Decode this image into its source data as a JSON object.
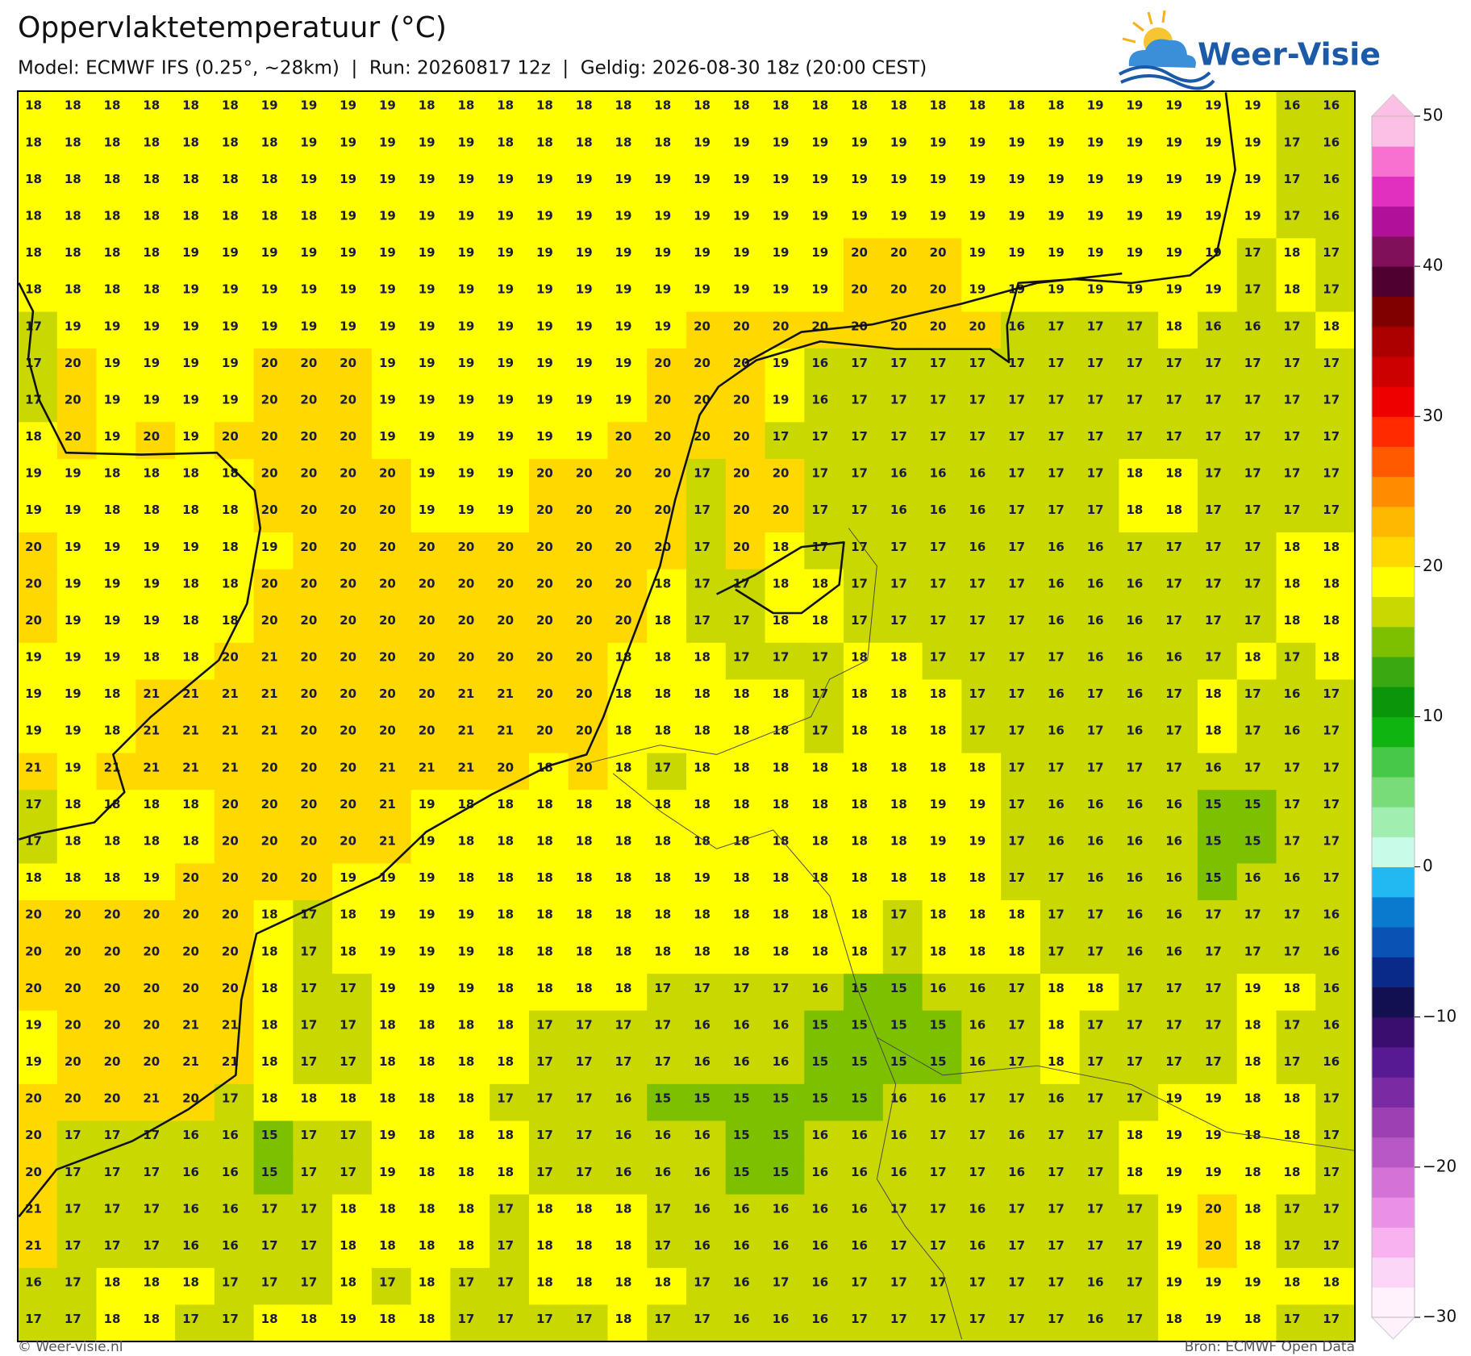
{
  "header": {
    "title": "Oppervlaktetemperatuur (°C)",
    "subtitle": "Model: ECMWF IFS (0.25°, ~28km)  |  Run: 20260817 12z  |  Geldig: 2026-08-30 18z (20:00 CEST)"
  },
  "logo": "Weer-Visie",
  "map": {
    "type": "grid",
    "values": [
      [
        18,
        18,
        18,
        18,
        18,
        18,
        19,
        19,
        19,
        19,
        18,
        18,
        18,
        18,
        18,
        18,
        18,
        18,
        18,
        18,
        18,
        18,
        18,
        18,
        18,
        18,
        18,
        19,
        19,
        19,
        19,
        19,
        16,
        16
      ],
      [
        18,
        18,
        18,
        18,
        18,
        18,
        18,
        19,
        19,
        19,
        19,
        19,
        18,
        18,
        18,
        18,
        18,
        19,
        19,
        19,
        19,
        19,
        19,
        19,
        19,
        19,
        19,
        19,
        19,
        19,
        19,
        19,
        17,
        16
      ],
      [
        18,
        18,
        18,
        18,
        18,
        18,
        18,
        19,
        19,
        19,
        19,
        19,
        19,
        19,
        19,
        19,
        19,
        19,
        19,
        19,
        19,
        19,
        19,
        19,
        19,
        19,
        19,
        19,
        19,
        19,
        19,
        19,
        17,
        16
      ],
      [
        18,
        18,
        18,
        18,
        18,
        18,
        18,
        18,
        19,
        19,
        19,
        19,
        19,
        19,
        19,
        19,
        19,
        19,
        19,
        19,
        19,
        19,
        19,
        19,
        19,
        19,
        19,
        19,
        19,
        19,
        19,
        19,
        17,
        16
      ],
      [
        18,
        18,
        18,
        18,
        19,
        19,
        19,
        19,
        19,
        19,
        19,
        19,
        19,
        19,
        19,
        19,
        19,
        19,
        19,
        19,
        19,
        20,
        20,
        20,
        19,
        19,
        19,
        19,
        19,
        19,
        19,
        17,
        18,
        17
      ],
      [
        18,
        18,
        18,
        18,
        19,
        19,
        19,
        19,
        19,
        19,
        19,
        19,
        19,
        19,
        19,
        19,
        19,
        19,
        19,
        19,
        19,
        20,
        20,
        20,
        19,
        19,
        19,
        19,
        19,
        19,
        19,
        17,
        18,
        17
      ],
      [
        17,
        19,
        19,
        19,
        19,
        19,
        19,
        19,
        19,
        19,
        19,
        19,
        19,
        19,
        19,
        19,
        19,
        20,
        20,
        20,
        20,
        20,
        20,
        20,
        20,
        16,
        17,
        17,
        17,
        18,
        16,
        16,
        17,
        18
      ],
      [
        17,
        20,
        19,
        19,
        19,
        19,
        20,
        20,
        20,
        19,
        19,
        19,
        19,
        19,
        19,
        19,
        20,
        20,
        20,
        19,
        16,
        17,
        17,
        17,
        17,
        17,
        17,
        17,
        17,
        17,
        17,
        17,
        17,
        17
      ],
      [
        17,
        20,
        19,
        19,
        19,
        19,
        20,
        20,
        20,
        19,
        19,
        19,
        19,
        19,
        19,
        19,
        20,
        20,
        20,
        19,
        16,
        17,
        17,
        17,
        17,
        17,
        17,
        17,
        17,
        17,
        17,
        17,
        17,
        17
      ],
      [
        18,
        20,
        19,
        20,
        19,
        20,
        20,
        20,
        20,
        19,
        19,
        19,
        19,
        19,
        19,
        20,
        20,
        20,
        20,
        17,
        17,
        17,
        17,
        17,
        17,
        17,
        17,
        17,
        17,
        17,
        17,
        17,
        17,
        17
      ],
      [
        19,
        19,
        18,
        18,
        18,
        18,
        20,
        20,
        20,
        20,
        19,
        19,
        19,
        20,
        20,
        20,
        20,
        17,
        20,
        20,
        17,
        17,
        16,
        16,
        16,
        17,
        17,
        17,
        18,
        18,
        17,
        17,
        17,
        17
      ],
      [
        19,
        19,
        18,
        18,
        18,
        18,
        20,
        20,
        20,
        20,
        19,
        19,
        19,
        20,
        20,
        20,
        20,
        17,
        20,
        20,
        17,
        17,
        16,
        16,
        16,
        17,
        17,
        17,
        18,
        18,
        17,
        17,
        17,
        17
      ],
      [
        20,
        19,
        19,
        19,
        19,
        18,
        19,
        20,
        20,
        20,
        20,
        20,
        20,
        20,
        20,
        20,
        20,
        17,
        20,
        18,
        17,
        17,
        17,
        17,
        16,
        17,
        16,
        16,
        17,
        17,
        17,
        17,
        18,
        18
      ],
      [
        20,
        19,
        19,
        19,
        18,
        18,
        20,
        20,
        20,
        20,
        20,
        20,
        20,
        20,
        20,
        20,
        18,
        17,
        17,
        18,
        18,
        17,
        17,
        17,
        17,
        17,
        16,
        16,
        16,
        17,
        17,
        17,
        18,
        18
      ],
      [
        20,
        19,
        19,
        19,
        18,
        18,
        20,
        20,
        20,
        20,
        20,
        20,
        20,
        20,
        20,
        20,
        18,
        17,
        17,
        18,
        18,
        17,
        17,
        17,
        17,
        17,
        16,
        16,
        16,
        17,
        17,
        17,
        18,
        18
      ],
      [
        19,
        19,
        19,
        18,
        18,
        20,
        21,
        20,
        20,
        20,
        20,
        20,
        20,
        20,
        20,
        18,
        18,
        18,
        17,
        17,
        17,
        18,
        18,
        17,
        17,
        17,
        17,
        16,
        16,
        16,
        17,
        18,
        17,
        18
      ],
      [
        19,
        19,
        18,
        21,
        21,
        21,
        21,
        20,
        20,
        20,
        20,
        21,
        21,
        20,
        20,
        18,
        18,
        18,
        18,
        18,
        17,
        18,
        18,
        18,
        17,
        17,
        16,
        17,
        16,
        17,
        18,
        17,
        16,
        17
      ],
      [
        19,
        19,
        18,
        21,
        21,
        21,
        21,
        20,
        20,
        20,
        20,
        21,
        21,
        20,
        20,
        18,
        18,
        18,
        18,
        18,
        17,
        18,
        18,
        18,
        17,
        17,
        16,
        17,
        16,
        17,
        18,
        17,
        16,
        17
      ],
      [
        21,
        19,
        21,
        21,
        21,
        21,
        20,
        20,
        20,
        21,
        21,
        21,
        20,
        18,
        20,
        18,
        17,
        18,
        18,
        18,
        18,
        18,
        18,
        18,
        18,
        17,
        17,
        17,
        17,
        17,
        16,
        17,
        17,
        17
      ],
      [
        17,
        18,
        18,
        18,
        18,
        20,
        20,
        20,
        20,
        21,
        19,
        18,
        18,
        18,
        18,
        18,
        18,
        18,
        18,
        18,
        18,
        18,
        18,
        19,
        19,
        17,
        16,
        16,
        16,
        16,
        15,
        15,
        17,
        17
      ],
      [
        17,
        18,
        18,
        18,
        18,
        20,
        20,
        20,
        20,
        21,
        19,
        18,
        18,
        18,
        18,
        18,
        18,
        18,
        18,
        18,
        18,
        18,
        18,
        19,
        19,
        17,
        16,
        16,
        16,
        16,
        15,
        15,
        17,
        17
      ],
      [
        18,
        18,
        18,
        19,
        20,
        20,
        20,
        20,
        19,
        19,
        19,
        18,
        18,
        18,
        18,
        18,
        18,
        19,
        18,
        18,
        18,
        18,
        18,
        18,
        18,
        17,
        17,
        16,
        16,
        16,
        15,
        16,
        16,
        17
      ],
      [
        20,
        20,
        20,
        20,
        20,
        20,
        18,
        17,
        18,
        19,
        19,
        19,
        18,
        18,
        18,
        18,
        18,
        18,
        18,
        18,
        18,
        18,
        17,
        18,
        18,
        18,
        17,
        17,
        16,
        16,
        17,
        17,
        17,
        16
      ],
      [
        20,
        20,
        20,
        20,
        20,
        20,
        18,
        17,
        18,
        19,
        19,
        19,
        18,
        18,
        18,
        18,
        18,
        18,
        18,
        18,
        18,
        18,
        17,
        18,
        18,
        18,
        17,
        17,
        16,
        16,
        17,
        17,
        17,
        16
      ],
      [
        20,
        20,
        20,
        20,
        20,
        20,
        18,
        17,
        17,
        19,
        19,
        19,
        18,
        18,
        18,
        18,
        17,
        17,
        17,
        17,
        16,
        15,
        15,
        16,
        16,
        17,
        18,
        18,
        17,
        17,
        17,
        19,
        18,
        16
      ],
      [
        19,
        20,
        20,
        20,
        21,
        21,
        18,
        17,
        17,
        18,
        18,
        18,
        18,
        17,
        17,
        17,
        17,
        16,
        16,
        16,
        15,
        15,
        15,
        15,
        16,
        17,
        18,
        17,
        17,
        17,
        17,
        18,
        17,
        16
      ],
      [
        19,
        20,
        20,
        20,
        21,
        21,
        18,
        17,
        17,
        18,
        18,
        18,
        18,
        17,
        17,
        17,
        17,
        16,
        16,
        16,
        15,
        15,
        15,
        15,
        16,
        17,
        18,
        17,
        17,
        17,
        17,
        18,
        17,
        16
      ],
      [
        20,
        20,
        20,
        21,
        20,
        17,
        18,
        18,
        18,
        18,
        18,
        18,
        17,
        17,
        17,
        16,
        15,
        15,
        15,
        15,
        15,
        15,
        16,
        16,
        17,
        17,
        16,
        17,
        17,
        19,
        19,
        18,
        18,
        17
      ],
      [
        20,
        17,
        17,
        17,
        16,
        16,
        15,
        17,
        17,
        19,
        18,
        18,
        18,
        17,
        17,
        16,
        16,
        16,
        15,
        15,
        16,
        16,
        16,
        17,
        17,
        16,
        17,
        17,
        18,
        19,
        19,
        18,
        18,
        17
      ],
      [
        20,
        17,
        17,
        17,
        16,
        16,
        15,
        17,
        17,
        19,
        18,
        18,
        18,
        17,
        17,
        16,
        16,
        16,
        15,
        15,
        16,
        16,
        16,
        17,
        17,
        16,
        17,
        17,
        18,
        19,
        19,
        18,
        18,
        17
      ],
      [
        21,
        17,
        17,
        17,
        16,
        16,
        17,
        17,
        18,
        18,
        18,
        18,
        17,
        18,
        18,
        18,
        17,
        16,
        16,
        16,
        16,
        16,
        17,
        17,
        16,
        17,
        17,
        17,
        17,
        19,
        20,
        18,
        17,
        17
      ],
      [
        21,
        17,
        17,
        17,
        16,
        16,
        17,
        17,
        18,
        18,
        18,
        18,
        17,
        18,
        18,
        18,
        17,
        16,
        16,
        16,
        16,
        16,
        17,
        17,
        16,
        17,
        17,
        17,
        17,
        19,
        20,
        18,
        17,
        17
      ],
      [
        16,
        17,
        18,
        18,
        18,
        17,
        17,
        17,
        18,
        17,
        18,
        17,
        17,
        18,
        18,
        18,
        18,
        17,
        16,
        17,
        16,
        17,
        17,
        17,
        17,
        17,
        17,
        16,
        17,
        19,
        19,
        19,
        18,
        18
      ],
      [
        17,
        17,
        18,
        18,
        17,
        17,
        18,
        18,
        19,
        18,
        18,
        17,
        17,
        17,
        17,
        18,
        17,
        17,
        16,
        16,
        16,
        17,
        17,
        17,
        17,
        17,
        17,
        16,
        17,
        18,
        19,
        18,
        17,
        17
      ]
    ]
  },
  "colorbar": {
    "clim": [
      -30,
      50
    ],
    "colors": [
      "#fff2fc",
      "#fcd6f6",
      "#f8b2f0",
      "#ea90e6",
      "#d472d8",
      "#b858c6",
      "#9c40b4",
      "#7a2aa2",
      "#581a92",
      "#3a0e6c",
      "#12104e",
      "#0a2a8a",
      "#0a52b4",
      "#0a7ace",
      "#22b8f2",
      "#c8fce8",
      "#a0eeb0",
      "#78dc78",
      "#48c848",
      "#10b410",
      "#0a960a",
      "#3aa810",
      "#7cc000",
      "#c8d800",
      "#ffff00",
      "#ffd800",
      "#ffb800",
      "#ff8c00",
      "#ff5a00",
      "#ff2a00",
      "#ee0000",
      "#cc0000",
      "#aa0000",
      "#800000",
      "#500030",
      "#80105a",
      "#b0109a",
      "#e030c0",
      "#f870d0",
      "#fcc0e6"
    ],
    "ticks": [
      {
        "value": -30,
        "label": "−30"
      },
      {
        "value": -20,
        "label": "−20"
      },
      {
        "value": -10,
        "label": "−10"
      },
      0,
      10,
      20,
      30,
      40,
      50
    ]
  },
  "footer": {
    "left": "© Weer-visie.nl",
    "right": "Bron: ECMWF Open Data"
  }
}
